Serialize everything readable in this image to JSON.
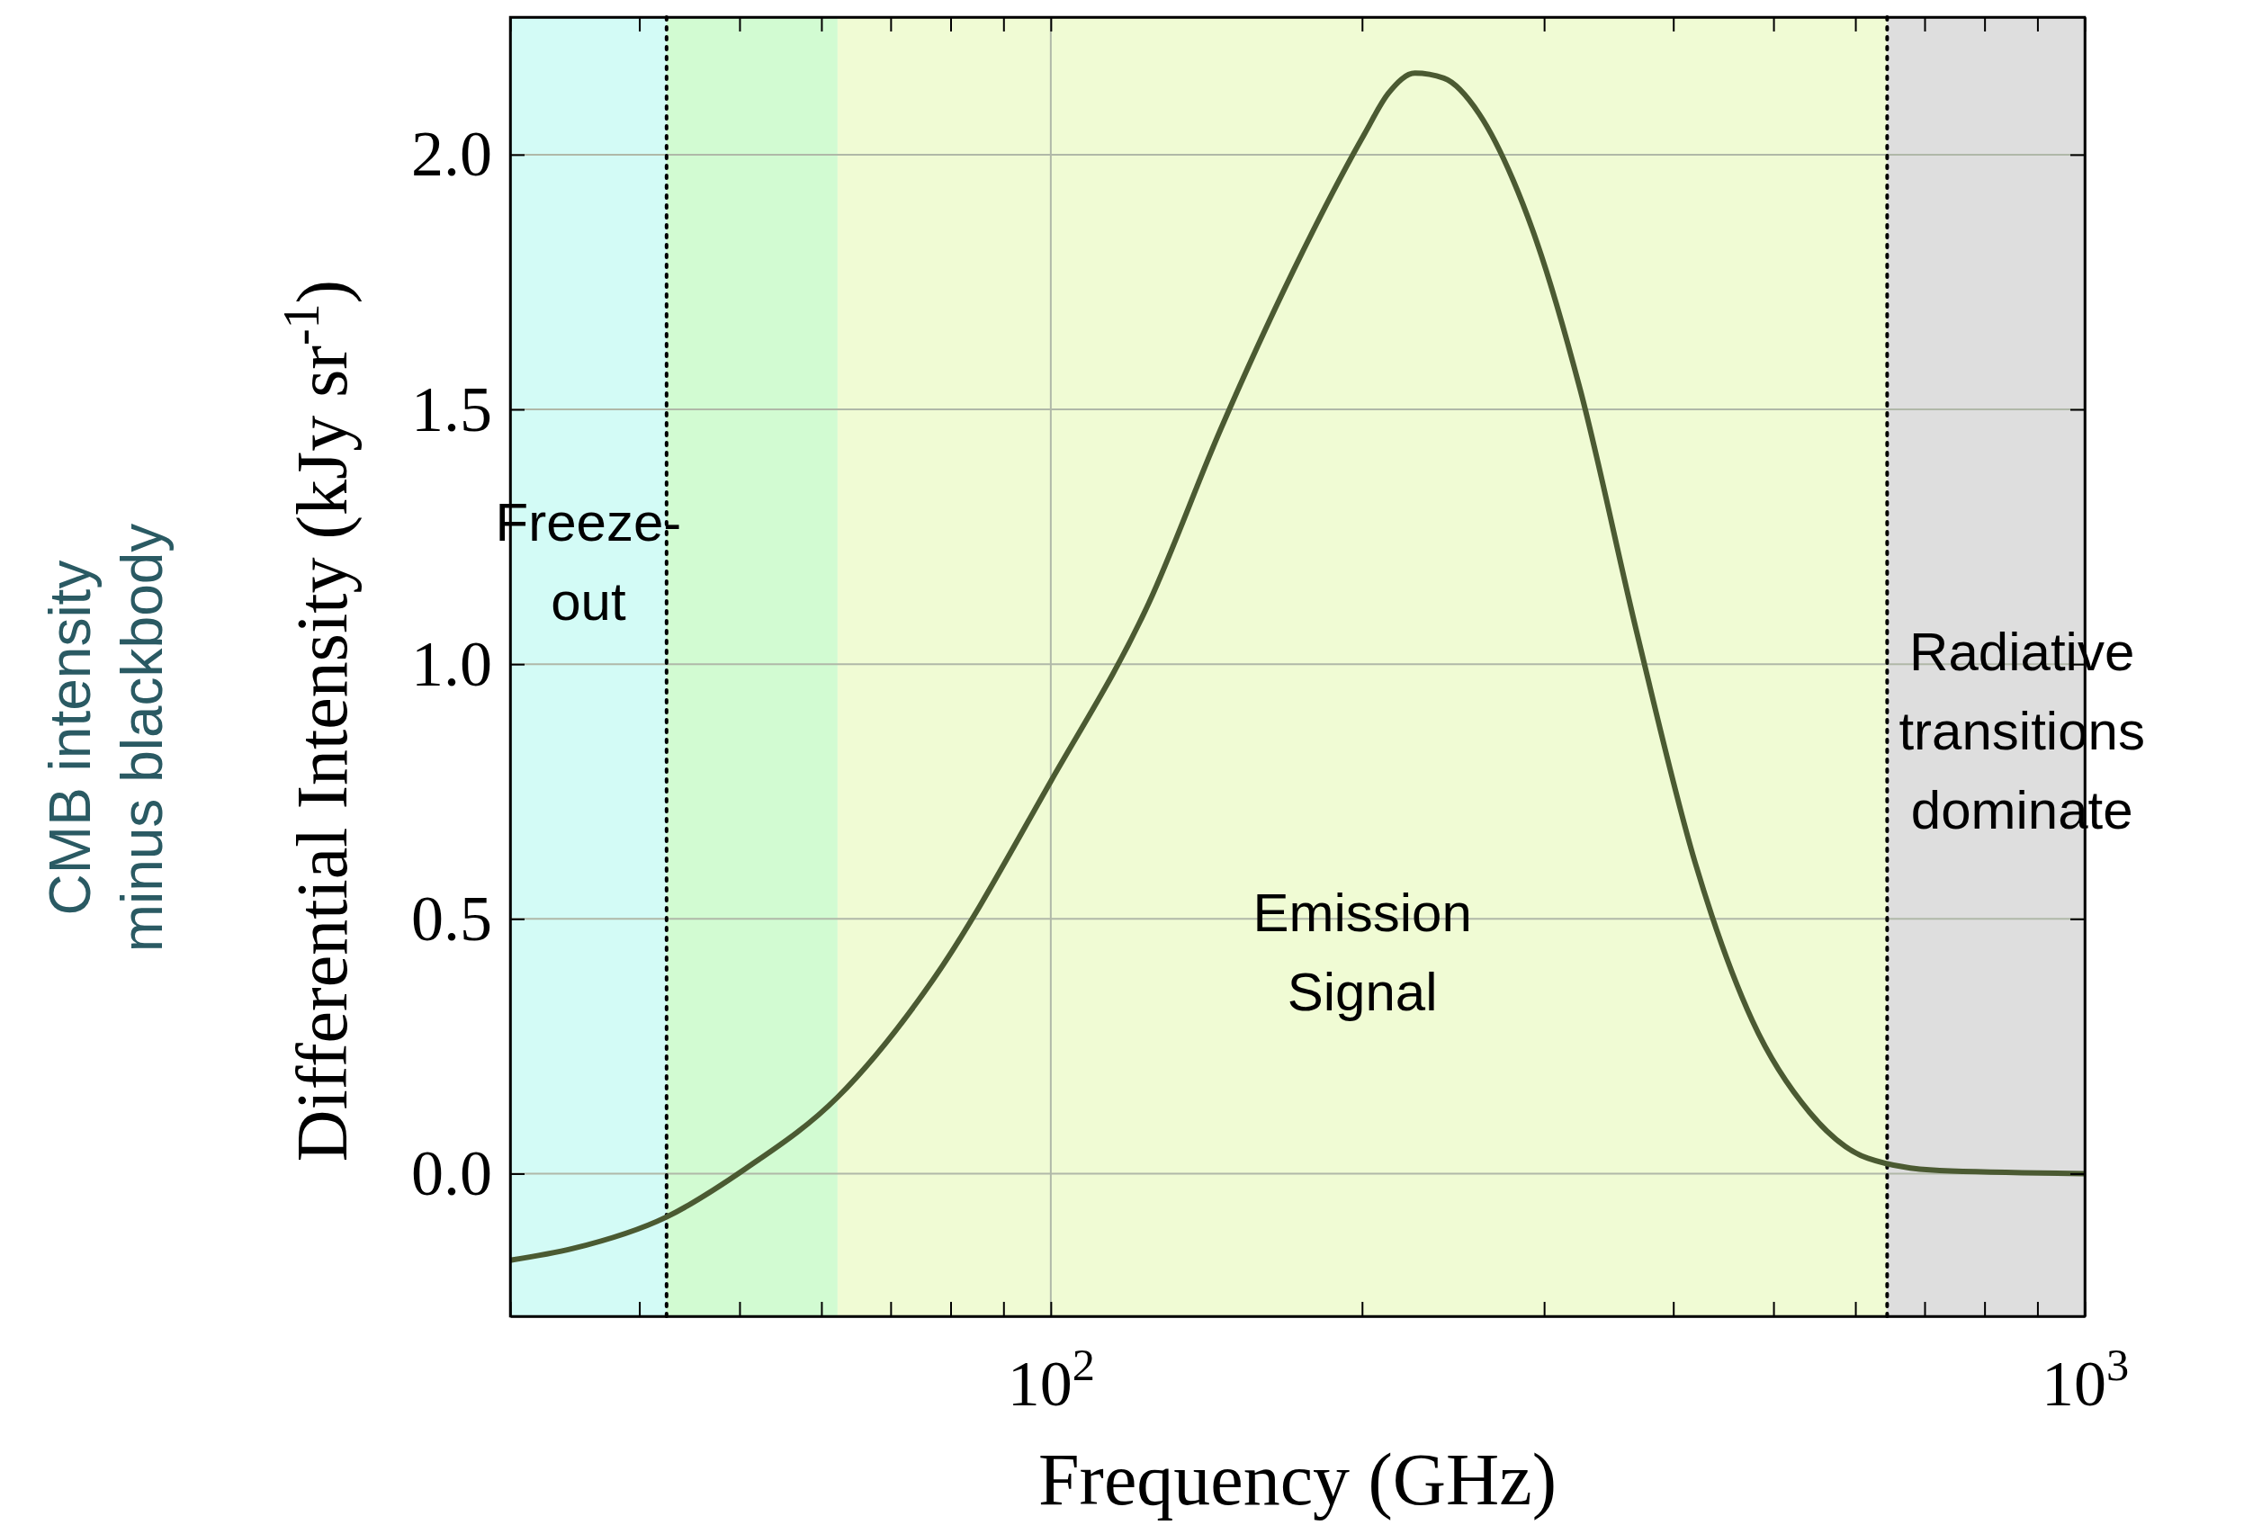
{
  "chart_data": {
    "type": "line",
    "xlabel": "Frequency (GHz)",
    "ylabel": "Differential Intensity (kJy sr$^{-1}$)",
    "annotations": [
      "CMB intensity minus blackbody"
    ],
    "log": "x",
    "grid": true,
    "marker": "none",
    "line_style": "solid",
    "xlim": [
      30,
      1000
    ],
    "ylim": [
      -0.28,
      2.27
    ],
    "xticks": [
      {
        "value": 30,
        "label": null
      },
      {
        "value": 40,
        "label": null
      },
      {
        "value": 50,
        "label": null
      },
      {
        "value": 60,
        "label": null
      },
      {
        "value": 70,
        "label": null
      },
      {
        "value": 80,
        "label": null
      },
      {
        "value": 90,
        "label": null
      },
      {
        "value": 100,
        "label": "10$^{2}$"
      },
      {
        "value": 200,
        "label": null
      },
      {
        "value": 300,
        "label": null
      },
      {
        "value": 400,
        "label": null
      },
      {
        "value": 500,
        "label": null
      },
      {
        "value": 600,
        "label": null
      },
      {
        "value": 700,
        "label": null
      },
      {
        "value": 800,
        "label": null
      },
      {
        "value": 900,
        "label": null
      },
      {
        "value": 1000,
        "label": "10$^{3}$"
      }
    ],
    "yticks": [
      {
        "value": 0,
        "label": "0.0"
      },
      {
        "value": 0.5,
        "label": "0.5"
      },
      {
        "value": 1,
        "label": "1.0"
      },
      {
        "value": 1.5,
        "label": "1.5"
      },
      {
        "value": 2,
        "label": "2.0"
      }
    ],
    "x": [
      30,
      34.5,
      42.5,
      50.7,
      62.2,
      76.9,
      100,
      124.4,
      145.9,
      171.4,
      201,
      212,
      225,
      240,
      259.6,
      280,
      295,
      325,
      369,
      420,
      477,
      542,
      617,
      724,
      1000
    ],
    "series": [
      {
        "color": "#4b5a32",
        "values": [
          -0.17,
          -0.147,
          -0.085,
          0.01,
          0.15,
          0.38,
          0.77,
          1.12,
          1.46,
          1.77,
          2.04,
          2.12,
          2.16,
          2.15,
          2.08,
          1.95,
          1.83,
          1.54,
          1.06,
          0.61,
          0.3,
          0.12,
          0.03,
          0.006,
          0
        ]
      }
    ],
    "bands": [
      {
        "axis": "x",
        "from": 30,
        "to": 42.5,
        "color": "#d3fbf6",
        "label": "Freeze-out"
      },
      {
        "axis": "x",
        "from": 42.5,
        "to": 62.2,
        "color": "#d2fbd2"
      },
      {
        "axis": "x",
        "from": 62.2,
        "to": 644,
        "color": "#f0fbd4",
        "label": "Emission Signal"
      },
      {
        "axis": "x",
        "from": 644,
        "to": 1000,
        "color": "#dedede",
        "label": "Radiative transitions dominate"
      }
    ],
    "ref_lines": [
      {
        "axis": "x",
        "value": 42.5,
        "color": "#000000",
        "line_style": "dotted"
      },
      {
        "axis": "x",
        "value": 644,
        "color": "#000000",
        "line_style": "dotted"
      }
    ]
  }
}
